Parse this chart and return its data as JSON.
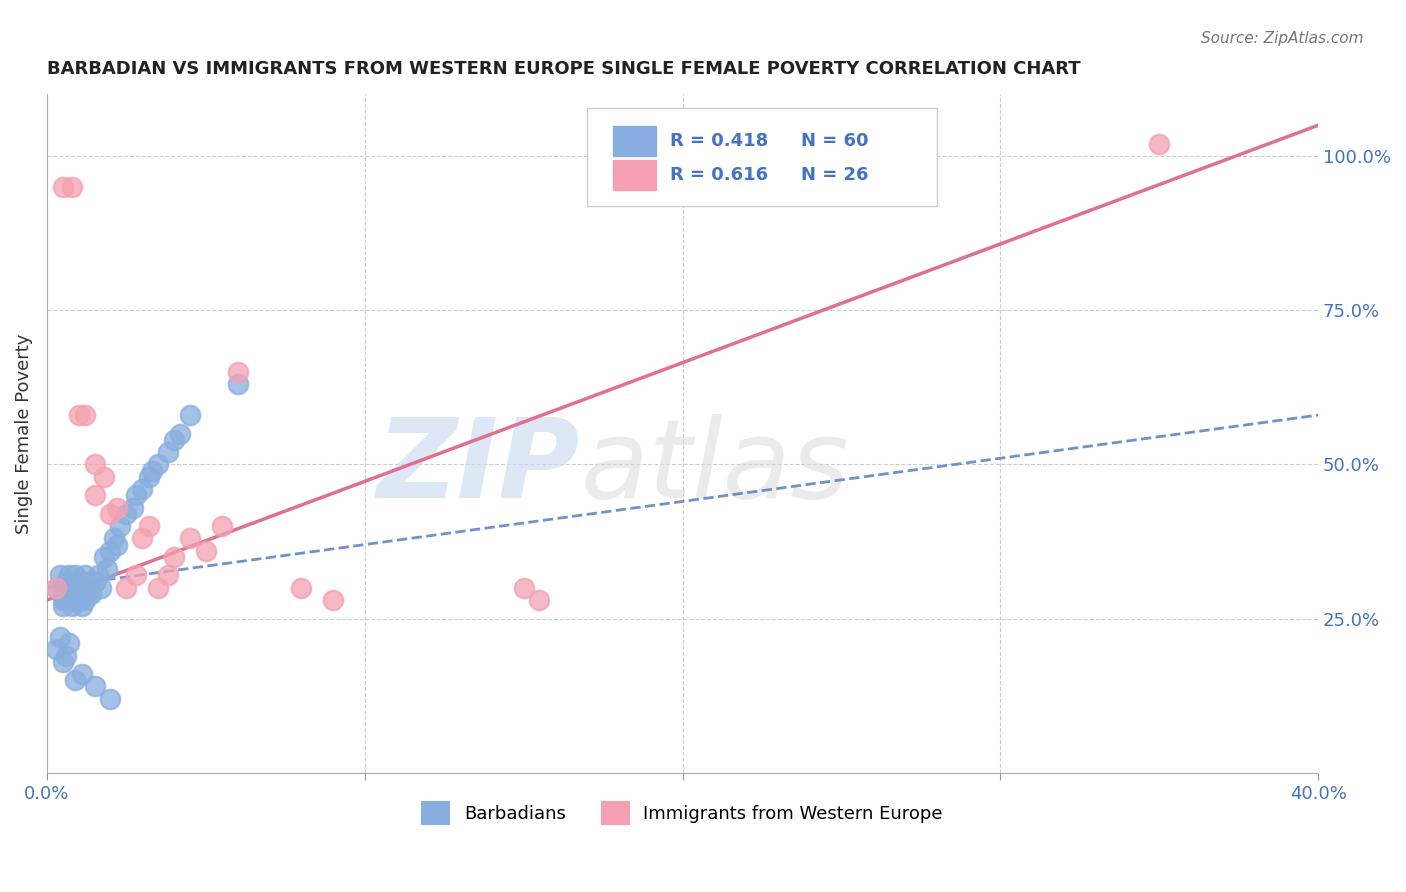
{
  "title": "BARBADIAN VS IMMIGRANTS FROM WESTERN EUROPE SINGLE FEMALE POVERTY CORRELATION CHART",
  "source": "Source: ZipAtlas.com",
  "ylabel": "Single Female Poverty",
  "xlim": [
    0.0,
    0.4
  ],
  "ylim": [
    0.0,
    1.1
  ],
  "xticks": [
    0.0,
    0.1,
    0.2,
    0.3,
    0.4
  ],
  "xticklabels": [
    "0.0%",
    "",
    "",
    "",
    "40.0%"
  ],
  "ytick_right_positions": [
    0.25,
    0.5,
    0.75,
    1.0
  ],
  "ytick_right_labels": [
    "25.0%",
    "50.0%",
    "75.0%",
    "100.0%"
  ],
  "R_blue": 0.418,
  "N_blue": 60,
  "R_pink": 0.616,
  "N_pink": 26,
  "blue_color": "#87AEDE",
  "pink_color": "#F4A0B0",
  "blue_line_color": "#5580C0",
  "pink_line_color": "#E07090",
  "grid_color": "#CCCCCC",
  "watermark_zip": "ZIP",
  "watermark_atlas": "atlas",
  "blue_scatter_x": [
    0.003,
    0.004,
    0.005,
    0.005,
    0.006,
    0.007,
    0.007,
    0.008,
    0.008,
    0.009,
    0.009,
    0.01,
    0.01,
    0.011,
    0.011,
    0.012,
    0.012,
    0.013,
    0.013,
    0.014,
    0.015,
    0.016,
    0.017,
    0.018,
    0.019,
    0.02,
    0.021,
    0.022,
    0.023,
    0.025,
    0.027,
    0.028,
    0.03,
    0.032,
    0.033,
    0.035,
    0.038,
    0.04,
    0.042,
    0.045,
    0.005,
    0.006,
    0.007,
    0.008,
    0.009,
    0.01,
    0.01,
    0.011,
    0.012,
    0.013,
    0.003,
    0.004,
    0.005,
    0.006,
    0.007,
    0.009,
    0.011,
    0.015,
    0.02,
    0.06
  ],
  "blue_scatter_y": [
    0.3,
    0.32,
    0.28,
    0.29,
    0.31,
    0.3,
    0.32,
    0.29,
    0.31,
    0.3,
    0.32,
    0.28,
    0.3,
    0.31,
    0.29,
    0.3,
    0.32,
    0.31,
    0.3,
    0.29,
    0.31,
    0.32,
    0.3,
    0.35,
    0.33,
    0.36,
    0.38,
    0.37,
    0.4,
    0.42,
    0.43,
    0.45,
    0.46,
    0.48,
    0.49,
    0.5,
    0.52,
    0.54,
    0.55,
    0.58,
    0.27,
    0.28,
    0.29,
    0.27,
    0.3,
    0.28,
    0.29,
    0.27,
    0.28,
    0.29,
    0.2,
    0.22,
    0.18,
    0.19,
    0.21,
    0.15,
    0.16,
    0.14,
    0.12,
    0.63
  ],
  "pink_scatter_x": [
    0.003,
    0.005,
    0.008,
    0.01,
    0.012,
    0.015,
    0.015,
    0.018,
    0.02,
    0.022,
    0.025,
    0.028,
    0.03,
    0.032,
    0.035,
    0.038,
    0.04,
    0.045,
    0.05,
    0.055,
    0.06,
    0.08,
    0.09,
    0.15,
    0.155,
    0.35
  ],
  "pink_scatter_y": [
    0.3,
    0.95,
    0.95,
    0.58,
    0.58,
    0.5,
    0.45,
    0.48,
    0.42,
    0.43,
    0.3,
    0.32,
    0.38,
    0.4,
    0.3,
    0.32,
    0.35,
    0.38,
    0.36,
    0.4,
    0.65,
    0.3,
    0.28,
    0.3,
    0.28,
    1.02
  ],
  "blue_trend_x": [
    0.0,
    0.4
  ],
  "blue_trend_y": [
    0.3,
    0.58
  ],
  "pink_trend_x": [
    0.0,
    0.4
  ],
  "pink_trend_y": [
    0.28,
    1.05
  ],
  "background_color": "#FFFFFF"
}
